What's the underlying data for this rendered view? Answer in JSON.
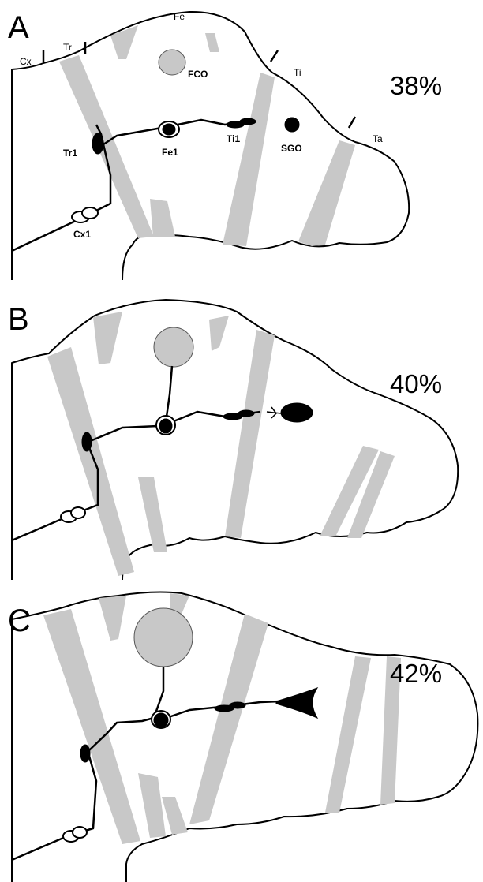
{
  "panels": [
    {
      "letter": "A",
      "percent": "38%",
      "labels": {
        "cx": "Cx",
        "tr": "Tr",
        "fe": "Fe",
        "ti": "Ti",
        "ta": "Ta",
        "fco": "FCO",
        "tr1": "Tr1",
        "fe1": "Fe1",
        "ti1": "Ti1",
        "sgo": "SGO",
        "cx1": "Cx1"
      }
    },
    {
      "letter": "B",
      "percent": "40%"
    },
    {
      "letter": "C",
      "percent": "42%"
    }
  ]
}
